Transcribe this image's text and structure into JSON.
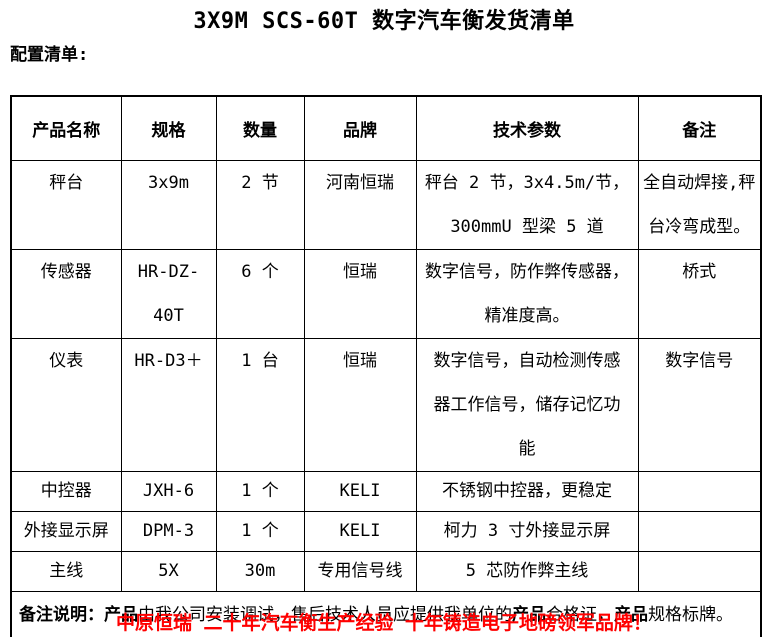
{
  "title": "3X9M SCS-60T 数字汽车衡发货清单",
  "section_label": "配置清单:",
  "table": {
    "headers": [
      "产品名称",
      "规格",
      "数量",
      "品牌",
      "技术参数",
      "备注"
    ],
    "rows": [
      [
        "秤台",
        "3x9m",
        "2 节",
        "河南恒瑞",
        "秤台 2 节，3x4.5m/节，\n300mmU 型梁 5 道",
        "全自动焊接,秤\n台冷弯成型。"
      ],
      [
        "传感器",
        "HR-DZ-40T",
        "6 个",
        "恒瑞",
        "数字信号，防作弊传感器，\n精准度高。",
        "桥式"
      ],
      [
        "仪表",
        "HR-D3＋",
        "1 台",
        "恒瑞",
        "数字信号，自动检测传感\n器工作信号，储存记忆功\n能",
        "数字信号"
      ],
      [
        "中控器",
        "JXH-6",
        "1 个",
        "KELI",
        "不锈钢中控器，更稳定",
        ""
      ],
      [
        "外接显示屏",
        "DPM-3",
        "1 个",
        "KELI",
        "柯力 3 寸外接显示屏",
        ""
      ],
      [
        "主线",
        "5X",
        "30m",
        "专用信号线",
        "5 芯防作弊主线",
        ""
      ]
    ],
    "note_segments": [
      {
        "text": "备注说明：",
        "bold": true
      },
      {
        "text": "产品",
        "bold": true
      },
      {
        "text": "由我公司安装调试，售后技术人员应提供我单位的",
        "bold": false
      },
      {
        "text": "产品",
        "bold": true
      },
      {
        "text": "合格证，",
        "bold": false
      },
      {
        "text": "产品",
        "bold": true
      },
      {
        "text": "规格标牌。",
        "bold": false
      }
    ]
  },
  "slogan": "中原恒瑞 二十年汽车衡生产经验 十年铸造电子地磅领军品牌！",
  "colors": {
    "text": "#000000",
    "slogan_red": "#ff0000",
    "border": "#000000",
    "background": "#ffffff"
  }
}
